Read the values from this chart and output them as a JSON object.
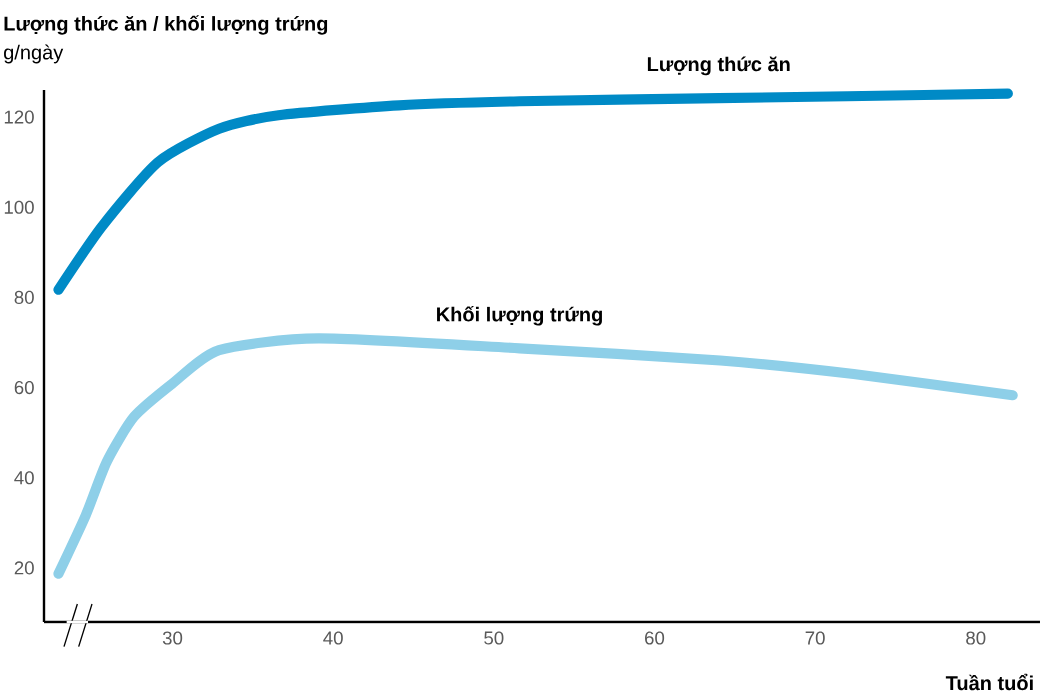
{
  "chart_data": {
    "type": "line",
    "ylabel": "Lượng thức ăn / khối lượng trứng",
    "annotations": [
      "g/ngày"
    ],
    "xlabel": "Tuần tuổi",
    "xlim": [
      22,
      84
    ],
    "ylim": [
      8,
      126
    ],
    "xticks": [
      30,
      40,
      50,
      60,
      70,
      80
    ],
    "yticks": [
      20,
      40,
      60,
      80,
      100,
      120
    ],
    "grid": false,
    "legend": false,
    "marker": "none",
    "line_style": "solid",
    "series": [
      {
        "name": "Lượng thức ăn",
        "color": "#008ac6",
        "x": [
          22.9,
          25.6,
          29.1,
          32.9,
          36.6,
          44.1,
          51.6,
          64,
          72,
          82
        ],
        "values": [
          81.7,
          95.7,
          110,
          117.4,
          120.4,
          122.6,
          123.5,
          124.2,
          124.6,
          125.2
        ]
      },
      {
        "name": "Khối lượng trứng",
        "color": "#8ecfe8",
        "x": [
          22.9,
          24.6,
          25.9,
          27.6,
          30,
          32.9,
          39.1,
          51.6,
          64.1,
          72.4,
          82.3
        ],
        "values": [
          18.7,
          31.7,
          43.5,
          53.5,
          60.9,
          68.3,
          70.9,
          68.7,
          66,
          63,
          58.3
        ]
      }
    ]
  }
}
